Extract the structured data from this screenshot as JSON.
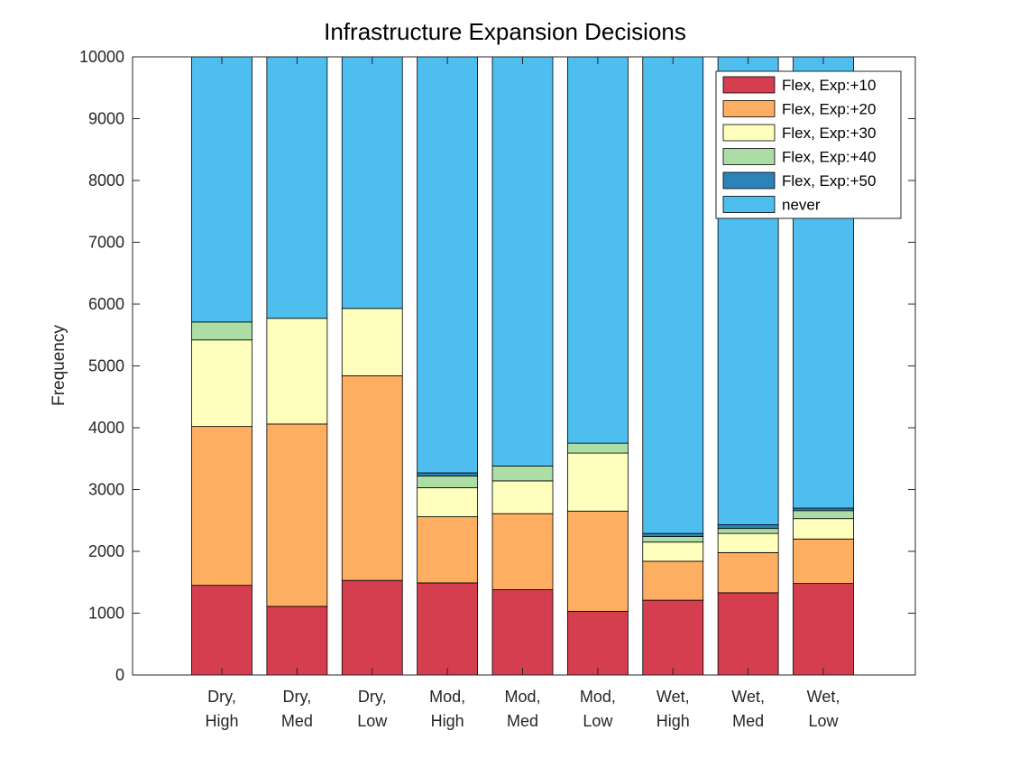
{
  "chart_data": {
    "type": "bar",
    "stacked": true,
    "title": "Infrastructure Expansion Decisions",
    "xlabel": "",
    "ylabel": "Frequency",
    "ylim": [
      0,
      10000
    ],
    "yticks": [
      0,
      1000,
      2000,
      3000,
      4000,
      5000,
      6000,
      7000,
      8000,
      9000,
      10000
    ],
    "grid": false,
    "legend_position": "top-right",
    "categories": [
      [
        "Dry,",
        "High"
      ],
      [
        "Dry,",
        "Med"
      ],
      [
        "Dry,",
        "Low"
      ],
      [
        "Mod,",
        "High"
      ],
      [
        "Mod,",
        "Med"
      ],
      [
        "Mod,",
        "Low"
      ],
      [
        "Wet,",
        "High"
      ],
      [
        "Wet,",
        "Med"
      ],
      [
        "Wet,",
        "Low"
      ]
    ],
    "series": [
      {
        "name": "Flex, Exp:+10",
        "color": "#d53e4f",
        "values": [
          1450,
          1110,
          1530,
          1490,
          1380,
          1030,
          1210,
          1330,
          1480
        ]
      },
      {
        "name": "Flex, Exp:+20",
        "color": "#fdae61",
        "values": [
          2570,
          2950,
          3310,
          1070,
          1230,
          1620,
          630,
          650,
          720
        ]
      },
      {
        "name": "Flex, Exp:+30",
        "color": "#fefebd",
        "values": [
          1400,
          1710,
          1090,
          470,
          530,
          940,
          310,
          310,
          330
        ]
      },
      {
        "name": "Flex, Exp:+40",
        "color": "#abdda4",
        "values": [
          290,
          0,
          0,
          190,
          240,
          160,
          90,
          80,
          130
        ]
      },
      {
        "name": "Flex, Exp:+50",
        "color": "#2b83ba",
        "values": [
          0,
          0,
          0,
          50,
          0,
          0,
          50,
          60,
          40
        ]
      },
      {
        "name": "never",
        "color": "#4dbeee",
        "values": [
          4290,
          4230,
          4070,
          6730,
          6620,
          6250,
          7710,
          7570,
          7300
        ]
      }
    ]
  }
}
